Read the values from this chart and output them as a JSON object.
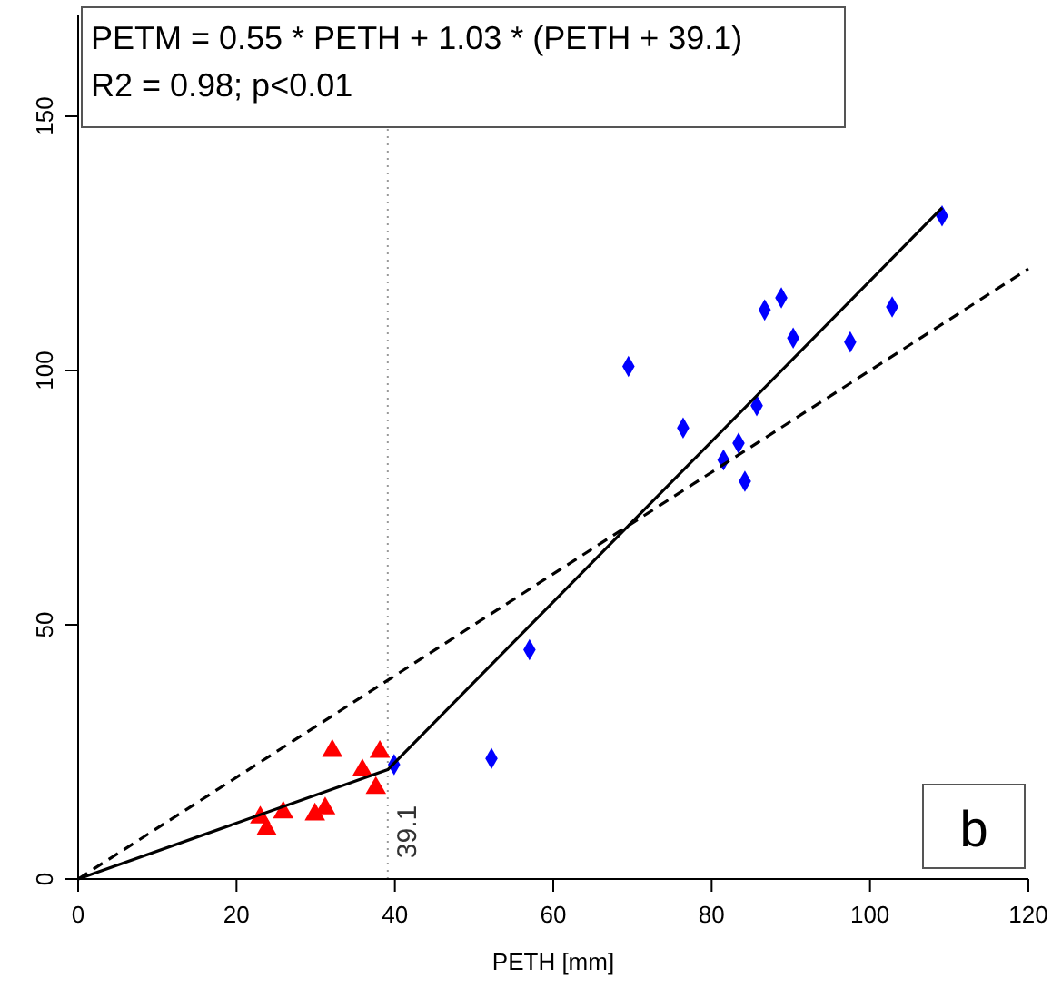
{
  "chart_data": {
    "type": "scatter",
    "xlabel": "PETH [mm]",
    "xlim": [
      0,
      120
    ],
    "ylim": [
      0,
      170
    ],
    "xticks": [
      0,
      20,
      40,
      60,
      80,
      100,
      120
    ],
    "yticks": [
      0,
      50,
      100,
      150
    ],
    "grid": false,
    "annotations": [
      "PETM = 0.55 * PETH + 1.03 * (PETH + 39.1)\nR2 = 0.98; p<0.01",
      "b"
    ],
    "ref_lines": [
      {
        "axis": "x",
        "value": 39.1,
        "label": "39.1",
        "color": "#999999",
        "line_style": "dotted"
      }
    ],
    "series": [
      {
        "color": "#ff0000",
        "marker": "triangle",
        "x": [
          32.1,
          38.1,
          35.9,
          37.6,
          23.0,
          23.8,
          25.9,
          29.9,
          31.2
        ],
        "values": [
          25.2,
          25,
          21.4,
          17.9,
          12.1,
          9.8,
          13.1,
          12.7,
          13.9
        ]
      },
      {
        "color": "#0000ff",
        "marker": "diamond",
        "x": [
          39.9,
          52.2,
          57.0,
          69.5,
          76.4,
          81.5,
          83.4,
          84.2,
          85.7,
          86.7,
          88.8,
          90.3,
          97.5,
          102.8,
          109.1
        ],
        "values": [
          22.5,
          23.7,
          45.1,
          100.8,
          88.7,
          82.4,
          85.7,
          78.2,
          93.1,
          111.9,
          114.3,
          106.4,
          105.6,
          112.5,
          130.4
        ]
      },
      {
        "type": "line",
        "color": "#000000",
        "line_style": "solid",
        "marker": "none",
        "x": [
          0,
          39.1,
          109.1
        ],
        "values": [
          0,
          21.5,
          132
        ]
      },
      {
        "type": "line",
        "color": "#000000",
        "line_style": "dashed",
        "marker": "none",
        "x": [
          0,
          120
        ],
        "values": [
          0,
          120
        ]
      }
    ]
  }
}
